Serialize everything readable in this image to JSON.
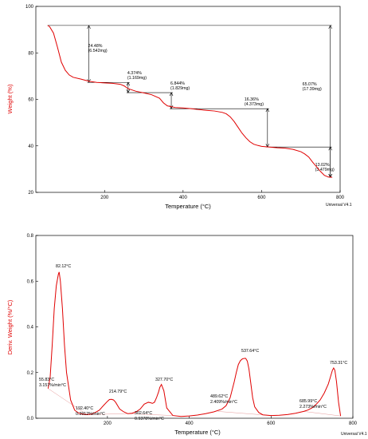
{
  "chart_data": [
    {
      "type": "line",
      "ylabel": "Weight (%)",
      "xlabel": "Temperature (°C)",
      "watermark": "Universal V4.1",
      "xlim": [
        25,
        800
      ],
      "ylim": [
        20,
        100
      ],
      "x_ticks": [
        "200",
        "400",
        "600",
        "800"
      ],
      "y_ticks": [
        "20",
        "40",
        "60",
        "80",
        "100"
      ],
      "line_color": "#e00000",
      "series": [
        {
          "x": [
            55,
            60,
            70,
            80,
            90,
            100,
            110,
            120,
            140,
            160,
            180,
            200,
            220,
            240,
            250,
            260,
            280,
            300,
            320,
            340,
            350,
            360,
            380,
            400,
            420,
            440,
            460,
            480,
            500,
            510,
            520,
            530,
            540,
            550,
            560,
            570,
            580,
            590,
            600,
            620,
            640,
            660,
            680,
            700,
            710,
            720,
            730,
            740,
            750,
            760,
            770,
            780
          ],
          "y": [
            91.8,
            91.3,
            88.5,
            82.5,
            76.0,
            72.5,
            70.5,
            69.5,
            68.7,
            67.8,
            67.3,
            67.1,
            66.9,
            66.5,
            65.8,
            64.6,
            63.5,
            62.8,
            62.0,
            60.5,
            58.5,
            57.2,
            56.5,
            56.3,
            56.0,
            55.6,
            55.3,
            55.0,
            54.4,
            53.8,
            52.5,
            50.5,
            48.0,
            45.5,
            43.5,
            41.8,
            40.7,
            40.2,
            39.8,
            39.5,
            39.2,
            39.0,
            38.5,
            37.5,
            36.5,
            35.2,
            33.0,
            31.0,
            29.0,
            27.3,
            26.6,
            26.5
          ]
        }
      ],
      "annotations": [
        {
          "x": 160,
          "y_top": 91.8,
          "y_bottom": 67.3,
          "label1": "24.48%",
          "label2": "(6.542mg)"
        },
        {
          "x": 260,
          "y_top": 67.3,
          "y_bottom": 62.9,
          "label1": "4.374%",
          "label2": "(1.169mg)"
        },
        {
          "x": 370,
          "y_top": 62.9,
          "y_bottom": 56.0,
          "label1": "6.844%",
          "label2": "(1.829mg)"
        },
        {
          "x": 615,
          "y_top": 56.0,
          "y_bottom": 39.5,
          "label1": "16.36%",
          "label2": "(4.373mg)"
        },
        {
          "x": 775,
          "y_top": 39.5,
          "y_bottom": 26.5,
          "label1": "13.02%",
          "label2": "(3.479mg)"
        },
        {
          "x": 775,
          "y_top": 91.8,
          "y_bottom": 26.5,
          "label1": "65.07%",
          "label2": "(17.39mg)"
        }
      ]
    },
    {
      "type": "line",
      "ylabel": "Deriv. Weight (%/°C)",
      "xlabel": "Temperature (°C)",
      "watermark": "Universal V4.1",
      "xlim": [
        25,
        800
      ],
      "ylim": [
        0.0,
        0.8
      ],
      "x_ticks": [
        "200",
        "400",
        "600",
        "800"
      ],
      "y_ticks": [
        "0.0",
        "0.2",
        "0.4",
        "0.6",
        "0.8"
      ],
      "line_color": "#e00000",
      "series": [
        {
          "x": [
            55,
            60,
            65,
            70,
            75,
            80,
            82,
            85,
            90,
            95,
            100,
            110,
            120,
            130,
            140,
            150,
            160,
            170,
            180,
            190,
            200,
            205,
            210,
            215,
            220,
            225,
            230,
            240,
            250,
            260,
            270,
            280,
            290,
            300,
            305,
            310,
            315,
            320,
            325,
            328,
            332,
            338,
            345,
            360,
            380,
            400,
            420,
            440,
            460,
            480,
            490,
            500,
            510,
            515,
            520,
            525,
            530,
            535,
            538,
            542,
            546,
            550,
            555,
            560,
            570,
            580,
            600,
            620,
            640,
            660,
            680,
            690,
            700,
            710,
            720,
            730,
            740,
            745,
            750,
            753,
            756,
            760,
            765,
            770
          ],
          "y": [
            0.13,
            0.18,
            0.32,
            0.48,
            0.58,
            0.63,
            0.64,
            0.6,
            0.48,
            0.32,
            0.2,
            0.08,
            0.035,
            0.022,
            0.018,
            0.016,
            0.018,
            0.025,
            0.035,
            0.055,
            0.074,
            0.082,
            0.083,
            0.08,
            0.07,
            0.055,
            0.04,
            0.028,
            0.02,
            0.022,
            0.028,
            0.04,
            0.062,
            0.07,
            0.068,
            0.065,
            0.07,
            0.09,
            0.115,
            0.135,
            0.148,
            0.12,
            0.045,
            0.012,
            0.008,
            0.01,
            0.014,
            0.02,
            0.028,
            0.04,
            0.055,
            0.09,
            0.16,
            0.2,
            0.235,
            0.252,
            0.26,
            0.262,
            0.262,
            0.25,
            0.215,
            0.16,
            0.09,
            0.05,
            0.025,
            0.015,
            0.012,
            0.013,
            0.016,
            0.022,
            0.03,
            0.036,
            0.045,
            0.06,
            0.08,
            0.11,
            0.15,
            0.18,
            0.21,
            0.22,
            0.21,
            0.16,
            0.07,
            0.01
          ]
        }
      ],
      "annotations": [
        {
          "label1": "82.12°C",
          "label2": ""
        },
        {
          "label1": "55.83°C",
          "label2": "3.157%/min°C"
        },
        {
          "label1": "192.40°C",
          "label2": "0.3912%/min°C"
        },
        {
          "label1": "214.79°C",
          "label2": ""
        },
        {
          "label1": "302.64°C",
          "label2": "0.9378%/min°C"
        },
        {
          "label1": "327.70°C",
          "label2": ""
        },
        {
          "label1": "489.62°C",
          "label2": "2.409%/min°C"
        },
        {
          "label1": "537.64°C",
          "label2": ""
        },
        {
          "label1": "685.99°C",
          "label2": "2.273%/min°C"
        },
        {
          "label1": "753.31°C",
          "label2": ""
        }
      ]
    }
  ]
}
